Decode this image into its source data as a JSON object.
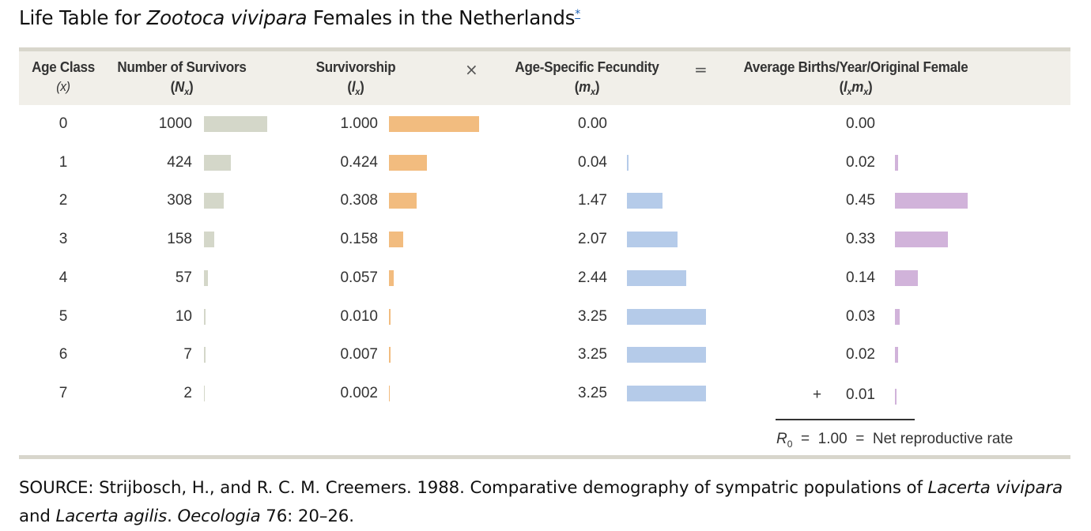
{
  "title": {
    "prefix": "Life Table for ",
    "species": "Zootoca vivipara",
    "suffix": " Females in the Netherlands",
    "footnote_mark": "*"
  },
  "headers": {
    "age_class": {
      "label": "Age Class",
      "symbol": "(x)"
    },
    "survivors": {
      "label": "Number of Survivors",
      "symbol": "N",
      "sub": "x"
    },
    "survivorship": {
      "label": "Survivorship",
      "symbol": "l",
      "sub": "x"
    },
    "fecundity": {
      "label": "Age-Specific Fecundity",
      "symbol": "m",
      "sub": "x"
    },
    "births": {
      "label": "Average Births/Year/Original Female",
      "symbol1": "l",
      "sub1": "x",
      "symbol2": "m",
      "sub2": "x"
    },
    "times": "×",
    "equals": "="
  },
  "rows": [
    {
      "x": "0",
      "N": "1000",
      "l": "1.000",
      "m": "0.00",
      "lm": "0.00",
      "N_val": 1000,
      "l_val": 1.0,
      "m_val": 0.0,
      "lm_val": 0.0
    },
    {
      "x": "1",
      "N": "424",
      "l": "0.424",
      "m": "0.04",
      "lm": "0.02",
      "N_val": 424,
      "l_val": 0.424,
      "m_val": 0.04,
      "lm_val": 0.02
    },
    {
      "x": "2",
      "N": "308",
      "l": "0.308",
      "m": "1.47",
      "lm": "0.45",
      "N_val": 308,
      "l_val": 0.308,
      "m_val": 1.47,
      "lm_val": 0.45
    },
    {
      "x": "3",
      "N": "158",
      "l": "0.158",
      "m": "2.07",
      "lm": "0.33",
      "N_val": 158,
      "l_val": 0.158,
      "m_val": 2.07,
      "lm_val": 0.33
    },
    {
      "x": "4",
      "N": "57",
      "l": "0.057",
      "m": "2.44",
      "lm": "0.14",
      "N_val": 57,
      "l_val": 0.057,
      "m_val": 2.44,
      "lm_val": 0.14
    },
    {
      "x": "5",
      "N": "10",
      "l": "0.010",
      "m": "3.25",
      "lm": "0.03",
      "N_val": 10,
      "l_val": 0.01,
      "m_val": 3.25,
      "lm_val": 0.03
    },
    {
      "x": "6",
      "N": "7",
      "l": "0.007",
      "m": "3.25",
      "lm": "0.02",
      "N_val": 7,
      "l_val": 0.007,
      "m_val": 3.25,
      "lm_val": 0.02
    },
    {
      "x": "7",
      "N": "2",
      "l": "0.002",
      "m": "3.25",
      "lm": "0.01",
      "N_val": 2,
      "l_val": 0.002,
      "m_val": 3.25,
      "lm_val": 0.01
    }
  ],
  "sum": {
    "plus": "+",
    "r0_symbol": "R",
    "r0_sub": "0",
    "equals": "=",
    "value": "1.00",
    "label": "Net reproductive rate"
  },
  "colors": {
    "survivors_bar": "#d4d7c9",
    "survivorship_bar": "#f2bc7f",
    "fecundity_bar": "#b5cbe9",
    "births_bar": "#d1b3da",
    "header_band": "#f1efe9",
    "rule": "#d8d6cc"
  },
  "source": {
    "text1": "SOURCE: Strijbosch, H., and R. C. M. Creemers. 1988. Comparative demography of sympatric populations of ",
    "italic1": "Lacerta vivipara",
    "text2": " and ",
    "italic2": "Lacerta agilis",
    "text3": ". ",
    "italic3": "Oecologia",
    "text4": " 76: 20–26."
  }
}
